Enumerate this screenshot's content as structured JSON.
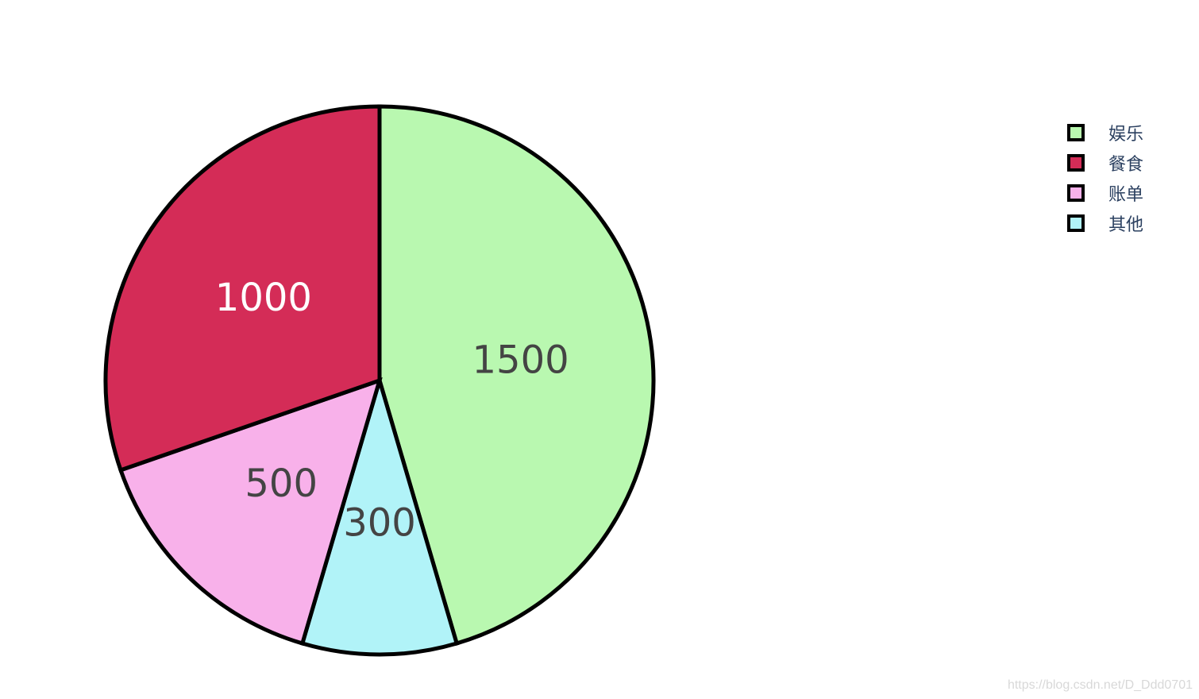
{
  "chart_data": {
    "type": "pie",
    "direction": "clockwise",
    "start_angle_deg": 90,
    "sort": false,
    "slices": [
      {
        "label": "娱乐",
        "value": 1500,
        "color": "#b9f8b0",
        "text_color": "#444444"
      },
      {
        "label": "其他",
        "value": 300,
        "color": "#b1f3f8",
        "text_color": "#444444"
      },
      {
        "label": "账单",
        "value": 500,
        "color": "#f8b1ea",
        "text_color": "#444444"
      },
      {
        "label": "餐食",
        "value": 1000,
        "color": "#d42c57",
        "text_color": "#ffffff"
      }
    ],
    "legend": {
      "placement": "top-right",
      "order": [
        "娱乐",
        "餐食",
        "账单",
        "其他"
      ]
    },
    "slice_border_color": "#000000"
  },
  "watermark": "https://blog.csdn.net/D_Ddd0701"
}
